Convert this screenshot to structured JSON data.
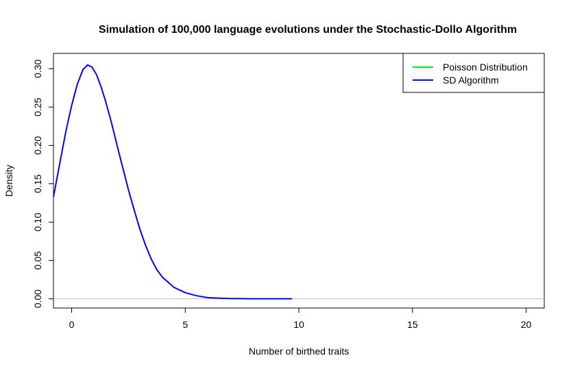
{
  "chart_data": {
    "type": "line",
    "title": "Simulation of 100,000 language evolutions under the Stochastic-Dollo Algorithm",
    "xlabel": "Number of birthed traits",
    "ylabel": "Density",
    "xlim": [
      -0.8,
      20.8
    ],
    "ylim": [
      -0.012,
      0.32
    ],
    "x_ticks": [
      "0",
      "5",
      "10",
      "15",
      "20"
    ],
    "x_tick_values": [
      0,
      5,
      10,
      15,
      20
    ],
    "y_ticks": [
      "0.00",
      "0.05",
      "0.10",
      "0.15",
      "0.20",
      "0.25",
      "0.30"
    ],
    "y_tick_values": [
      0,
      0.05,
      0.1,
      0.15,
      0.2,
      0.25,
      0.3
    ],
    "hline": {
      "y": 0,
      "color": "#c0c0c0"
    },
    "legend": {
      "position": "top-right"
    },
    "series": [
      {
        "name": "Poisson Distribution",
        "color": "#00ee00",
        "x": [],
        "y": []
      },
      {
        "name": "SD Algorithm",
        "color": "#0000ff",
        "x": [
          -0.8,
          -0.5,
          -0.25,
          0,
          0.25,
          0.5,
          0.7,
          0.9,
          1.1,
          1.3,
          1.5,
          1.75,
          2,
          2.25,
          2.5,
          2.75,
          3,
          3.25,
          3.5,
          3.75,
          4,
          4.5,
          5,
          5.5,
          6,
          6.5,
          7,
          8,
          9,
          9.7
        ],
        "y": [
          0.133,
          0.18,
          0.219,
          0.252,
          0.28,
          0.299,
          0.305,
          0.302,
          0.292,
          0.276,
          0.257,
          0.23,
          0.2,
          0.171,
          0.142,
          0.116,
          0.091,
          0.07,
          0.052,
          0.038,
          0.028,
          0.015,
          0.008,
          0.004,
          0.0015,
          0.0008,
          0.0004,
          0.0001,
          0.0,
          0.0
        ]
      }
    ]
  }
}
